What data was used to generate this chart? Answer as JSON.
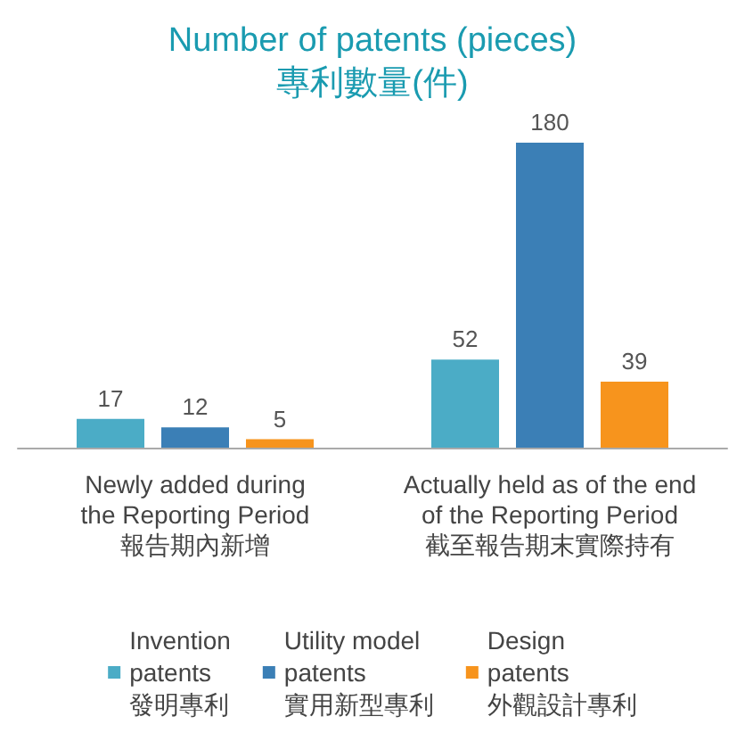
{
  "chart_data": {
    "type": "bar",
    "title": "Number of patents (pieces)\n專利數量(件)",
    "categories": [
      "Newly added during\nthe Reporting Period\n報告期內新增",
      "Actually held as of the end\nof the Reporting Period\n截至報告期末實際持有"
    ],
    "series": [
      {
        "name": "Invention\npatents\n發明專利",
        "color": "#4bacc6",
        "values": [
          17,
          52
        ]
      },
      {
        "name": "Utility model\npatents\n實用新型專利",
        "color": "#3b7fb6",
        "values": [
          12,
          180
        ]
      },
      {
        "name": "Design\npatents\n外觀設計專利",
        "color": "#f7941d",
        "values": [
          5,
          39
        ]
      }
    ],
    "data_labels": true,
    "legend": "bottom",
    "tick_labels": "x"
  }
}
